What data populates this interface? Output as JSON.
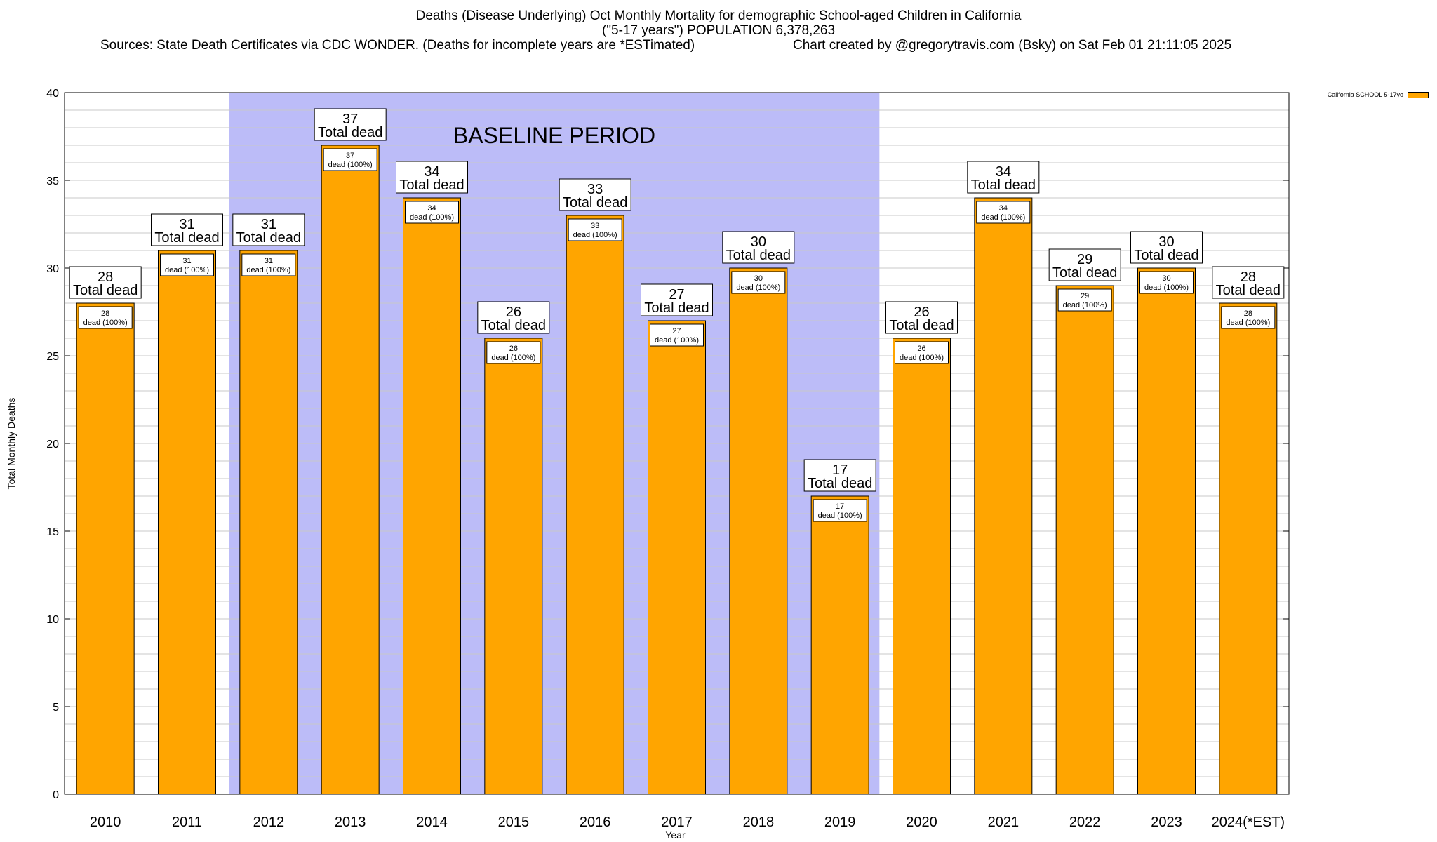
{
  "title": {
    "line1": "Deaths (Disease Underlying) Oct Monthly Mortality for demographic School-aged Children in California",
    "line2": "(\"5-17 years\") POPULATION 6,378,263",
    "sources": "Sources: State Death Certificates via CDC WONDER. (Deaths for incomplete years are *ESTimated)",
    "credit": "Chart created by @gregorytravis.com (Bsky) on Sat Feb 01 21:11:05 2025"
  },
  "legend": {
    "label": "California SCHOOL 5-17yo"
  },
  "colors": {
    "bar": "#ffa500",
    "baseline_shade": "#bcbcf8",
    "grid": "#c8c8c8"
  },
  "chart_data": {
    "type": "bar",
    "categories": [
      "2010",
      "2011",
      "2012",
      "2013",
      "2014",
      "2015",
      "2016",
      "2017",
      "2018",
      "2019",
      "2020",
      "2021",
      "2022",
      "2023",
      "2024(*EST)"
    ],
    "series": [
      {
        "name": "California SCHOOL 5-17yo",
        "values": [
          28,
          31,
          31,
          37,
          34,
          26,
          33,
          27,
          30,
          17,
          26,
          34,
          29,
          30,
          28
        ]
      }
    ],
    "total_label": "Total dead",
    "inner_label": "dead (100%)",
    "baseline": {
      "label": "BASELINE PERIOD",
      "start_category": "2012",
      "end_category": "2019"
    },
    "xlabel": "Year",
    "ylabel": "Total Monthly Deaths",
    "ylim": [
      0,
      40
    ],
    "yticks": [
      0,
      5,
      10,
      15,
      20,
      25,
      30,
      35,
      40
    ],
    "grid": true,
    "legend_position": "top-right"
  }
}
